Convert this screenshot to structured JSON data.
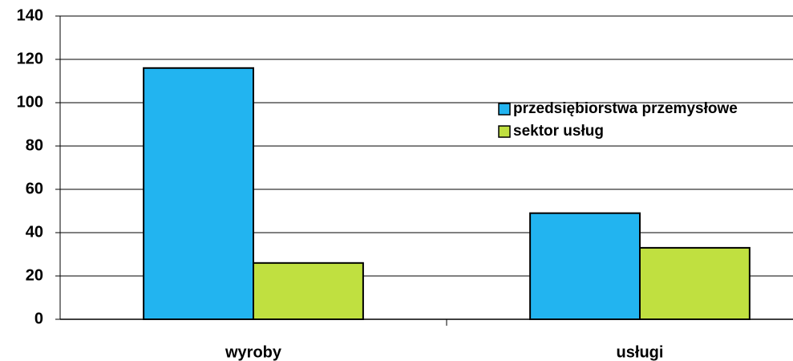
{
  "chart_data": {
    "type": "bar",
    "categories": [
      "wyroby",
      "usługi"
    ],
    "series": [
      {
        "name": "przedsiębiorstwa przemysłowe",
        "color": "#22b4f0",
        "values": [
          116,
          49
        ]
      },
      {
        "name": "sektor usług",
        "color": "#c0e040",
        "values": [
          26,
          33
        ]
      }
    ],
    "ylim": [
      0,
      140
    ],
    "yticks": [
      0,
      20,
      40,
      60,
      80,
      100,
      120,
      140
    ],
    "grid": true,
    "legend": "right"
  }
}
